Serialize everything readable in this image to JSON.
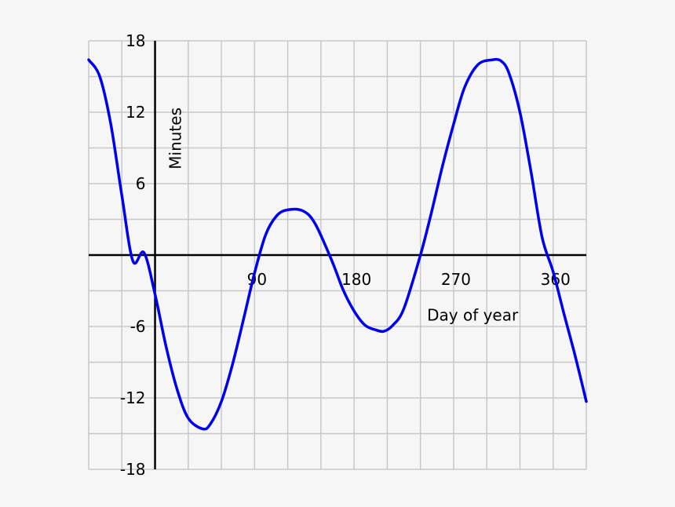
{
  "chart_data": {
    "type": "line",
    "title": "",
    "xlabel": "Day of year",
    "ylabel": "Minutes",
    "xlim": [
      -60,
      390
    ],
    "ylim": [
      -18,
      18
    ],
    "x_ticks": [
      90,
      180,
      270,
      360
    ],
    "x_tick_labels": [
      "90",
      "180",
      "270",
      "360"
    ],
    "y_ticks": [
      18,
      12,
      6,
      -6,
      -12,
      -18
    ],
    "y_tick_labels": [
      "18",
      "12",
      "6",
      "-6",
      "-12",
      "-18"
    ],
    "grid": true,
    "grid_step_x": 30,
    "grid_step_y": 3,
    "series": [
      {
        "color": "#0000ee",
        "x": [
          -60,
          -50,
          -40,
          -30,
          -20,
          -10,
          0,
          10,
          20,
          30,
          43,
          50,
          60,
          70,
          80,
          90,
          100,
          110,
          120,
          134,
          145,
          160,
          170,
          180,
          190,
          200,
          207,
          215,
          225,
          240,
          250,
          260,
          270,
          280,
          292,
          305,
          313,
          320,
          330,
          340,
          350,
          360,
          370,
          380,
          390
        ],
        "y": [
          16.4,
          15.0,
          11.0,
          5.0,
          -0.5,
          0.2,
          -3.3,
          -7.7,
          -11.3,
          -13.7,
          -14.6,
          -14.2,
          -12.3,
          -9.2,
          -5.4,
          -1.5,
          1.7,
          3.3,
          3.8,
          3.7,
          2.6,
          -0.5,
          -2.9,
          -4.7,
          -5.9,
          -6.3,
          -6.4,
          -5.9,
          -4.5,
          0.0,
          3.6,
          7.5,
          11.0,
          14.1,
          16.0,
          16.4,
          16.3,
          15.3,
          12.0,
          7.0,
          1.5,
          -1.4,
          -5.0,
          -8.5,
          -12.3
        ]
      }
    ]
  },
  "colors": {
    "background": "#f6f6f6",
    "grid": "#c8c8c8",
    "axis": "#000000",
    "curve": "#0000ee"
  }
}
